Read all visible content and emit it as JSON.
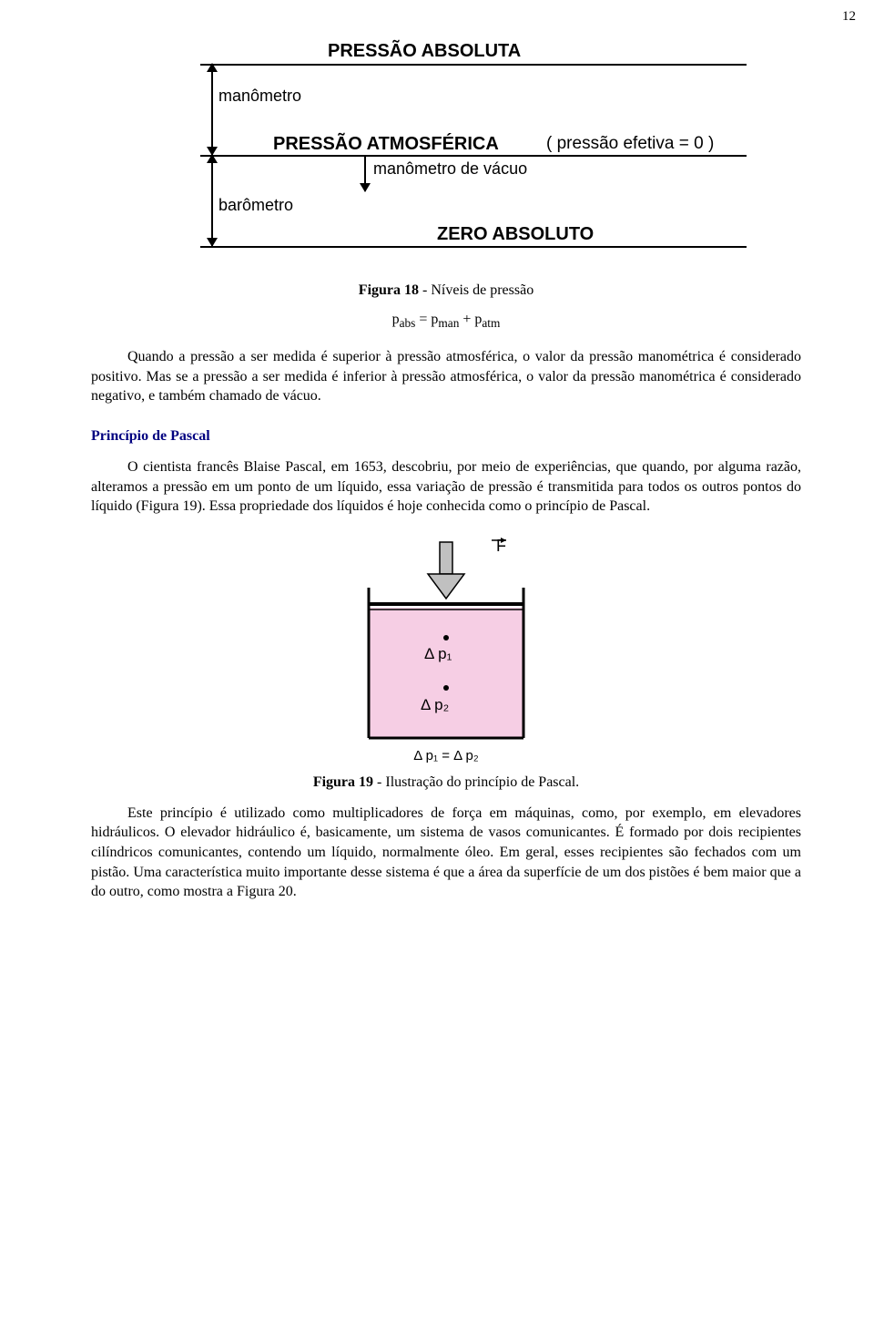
{
  "page_number": "12",
  "diagram1": {
    "title": "PRESSÃO  ABSOLUTA",
    "manometer": "manômetro",
    "atmospheric": "PRESSÃO ATMOSFÉRICA",
    "effective_zero": "( pressão efetiva = 0 )",
    "vacuum_gauge": "manômetro de vácuo",
    "barometer": "barômetro",
    "zero_abs": "ZERO ABSOLUTO",
    "line_color": "#000000"
  },
  "figure18_caption_bold": "Figura 18",
  "figure18_caption_rest": " -  Níveis de pressão",
  "equation1_html": "p<sub>abs</sub>  =  p<sub>man</sub> + p<sub>atm</sub>",
  "paragraph1": "Quando a pressão a ser medida é superior à pressão atmosférica, o valor da pressão manométrica é considerado positivo. Mas se a pressão a ser medida é inferior à pressão atmosférica, o valor da pressão manométrica é considerado negativo, e também chamado de vácuo.",
  "section_title": "Princípio de Pascal",
  "paragraph2": "O cientista francês Blaise Pascal, em 1653, descobriu, por meio de experiências, que quando, por alguma razão, alteramos a pressão em um ponto de um líquido, essa variação de pressão é transmitida para todos os outros pontos do líquido (Figura 19). Essa propriedade dos líquidos é hoje conhecida como o princípio de Pascal.",
  "diagram2": {
    "force_label": "F",
    "dp1": "Δ p₁",
    "dp2": "Δ  p₂",
    "equation": "Δ p₁ = Δ p₂",
    "liquid_color": "#f6cee4",
    "container_stroke": "#000000",
    "arrow_fill": "#c0c0c0",
    "arrow_stroke": "#000000"
  },
  "figure19_caption_bold": "Figura 19",
  "figure19_caption_rest": " - Ilustração do princípio de Pascal.",
  "paragraph3": "Este princípio é utilizado como multiplicadores de força em máquinas, como, por exemplo, em elevadores hidráulicos. O elevador hidráulico é, basicamente, um sistema de vasos comunicantes. É formado por dois recipientes cilíndricos comunicantes, contendo um líquido, normalmente óleo. Em geral, esses recipientes são fechados com um pistão. Uma característica muito importante desse sistema é que a área da superfície de um dos pistões é bem maior que a do outro, como mostra a Figura 20."
}
